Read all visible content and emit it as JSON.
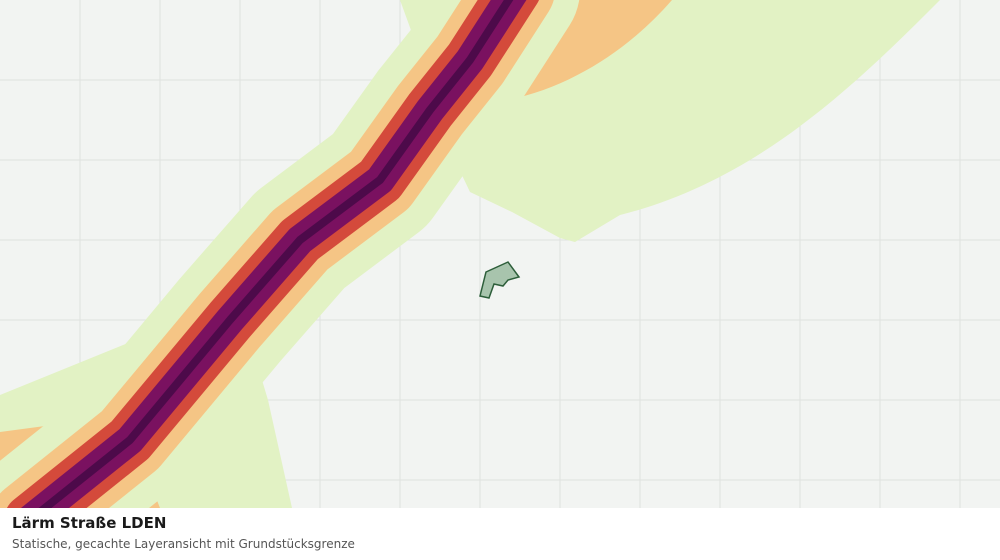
{
  "panel": {
    "title": "Lärm Straße LDEN",
    "subtitle": "Statische, gecachte Layeransicht mit Grundstücksgrenze"
  }
}
